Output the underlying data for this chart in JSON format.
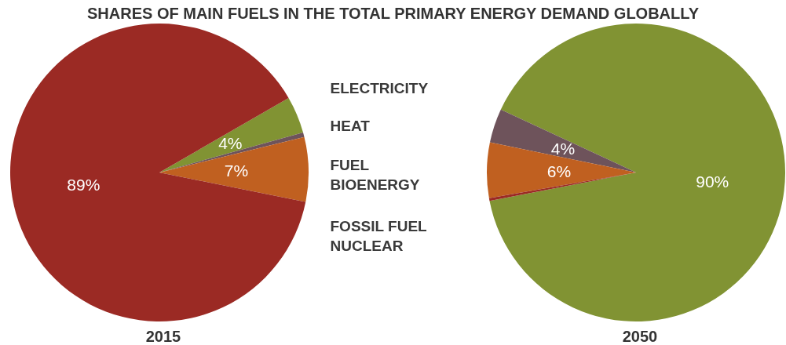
{
  "chart_data": {
    "type": "pie",
    "title": "SHARES OF MAIN FUELS IN THE TOTAL PRIMARY ENERGY DEMAND GLOBALLY",
    "categories": [
      "ELECTRICITY",
      "HEAT",
      "FUEL BIOENERGY",
      "FOSSIL FUEL NUCLEAR"
    ],
    "series": [
      {
        "name": "2015",
        "values": [
          4,
          0.5,
          7,
          88.5
        ],
        "value_labels": [
          "4%",
          null,
          "7%",
          "89%"
        ],
        "colors": [
          "#819333",
          "#6e535b",
          "#c06020",
          "#9b2a24"
        ]
      },
      {
        "name": "2050",
        "values": [
          90,
          3.7,
          6,
          0.3
        ],
        "value_labels": [
          "90%",
          "4%",
          "6%",
          null
        ],
        "colors": [
          "#819333",
          "#6e535b",
          "#c06020",
          "#9b2a24"
        ]
      }
    ]
  }
}
